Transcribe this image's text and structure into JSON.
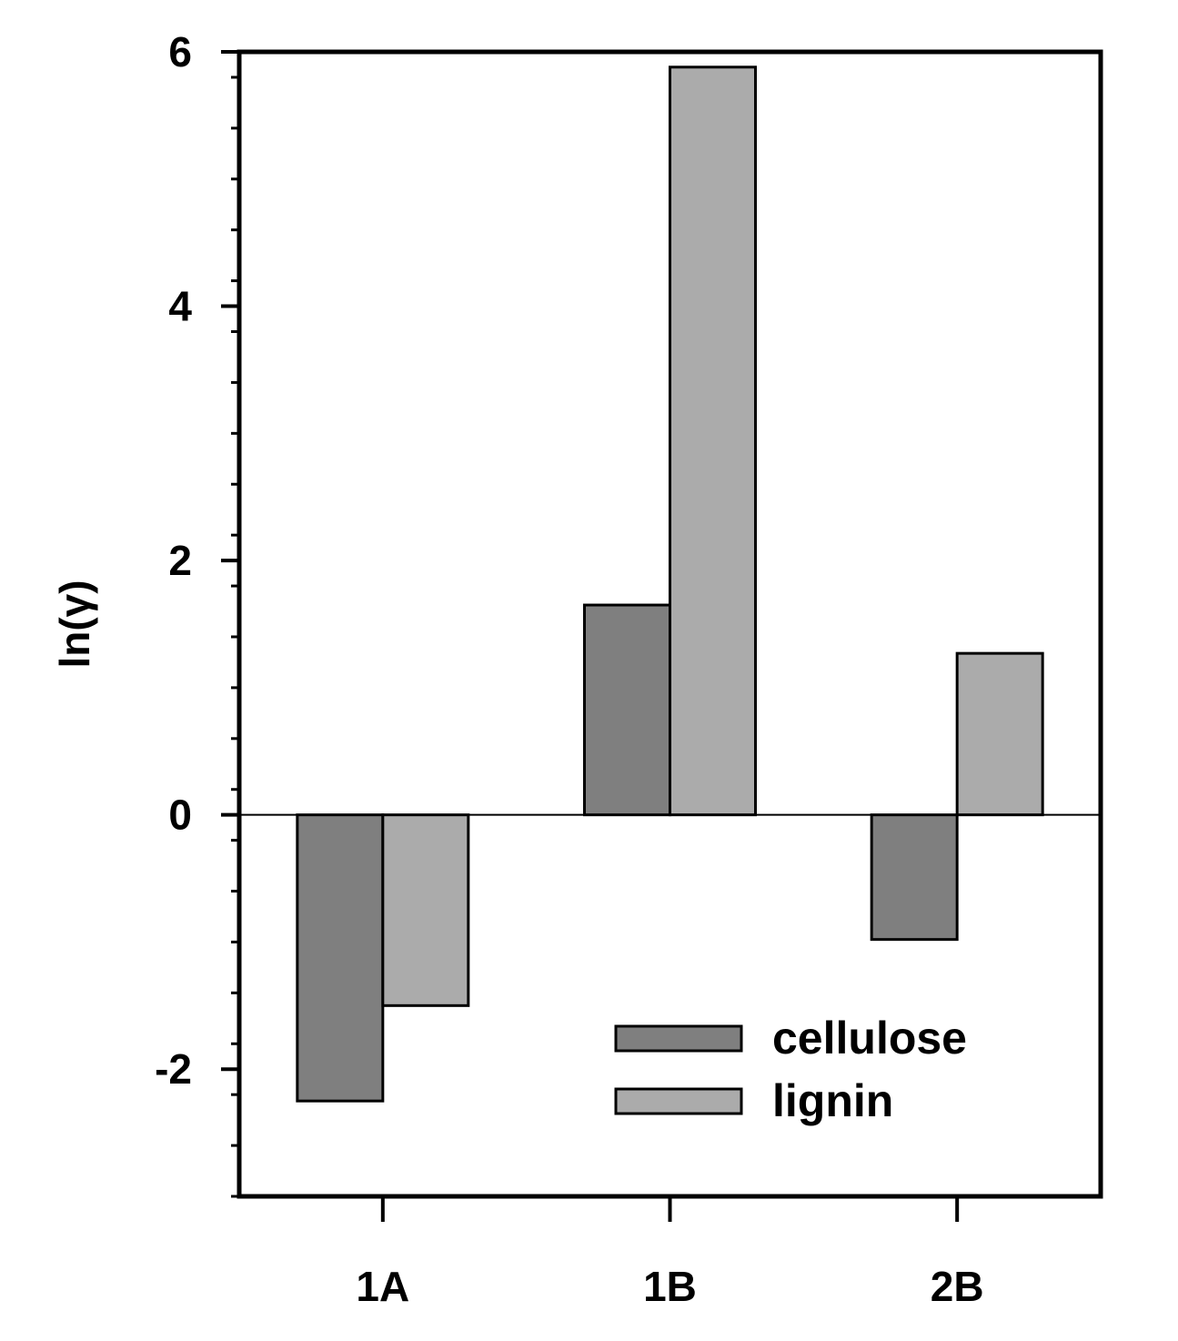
{
  "chart_data": {
    "type": "bar",
    "categories": [
      "1A",
      "1B",
      "2B"
    ],
    "series": [
      {
        "name": "cellulose",
        "values": [
          -2.25,
          1.65,
          -0.98
        ],
        "color": "#7f7f7f"
      },
      {
        "name": "lignin",
        "values": [
          -1.5,
          5.88,
          1.27
        ],
        "color": "#ababab"
      }
    ],
    "ylabel": "ln(γ)",
    "xlabel": "",
    "ylim": [
      -3,
      6
    ],
    "y_ticks": [
      -2,
      0,
      2,
      4,
      6
    ],
    "y_tick_labels": [
      "-2",
      "0",
      "2",
      "4",
      "6"
    ],
    "y_minor_step": 0.4,
    "zero_line": true,
    "grid": false,
    "legend_position": "bottom-right"
  }
}
